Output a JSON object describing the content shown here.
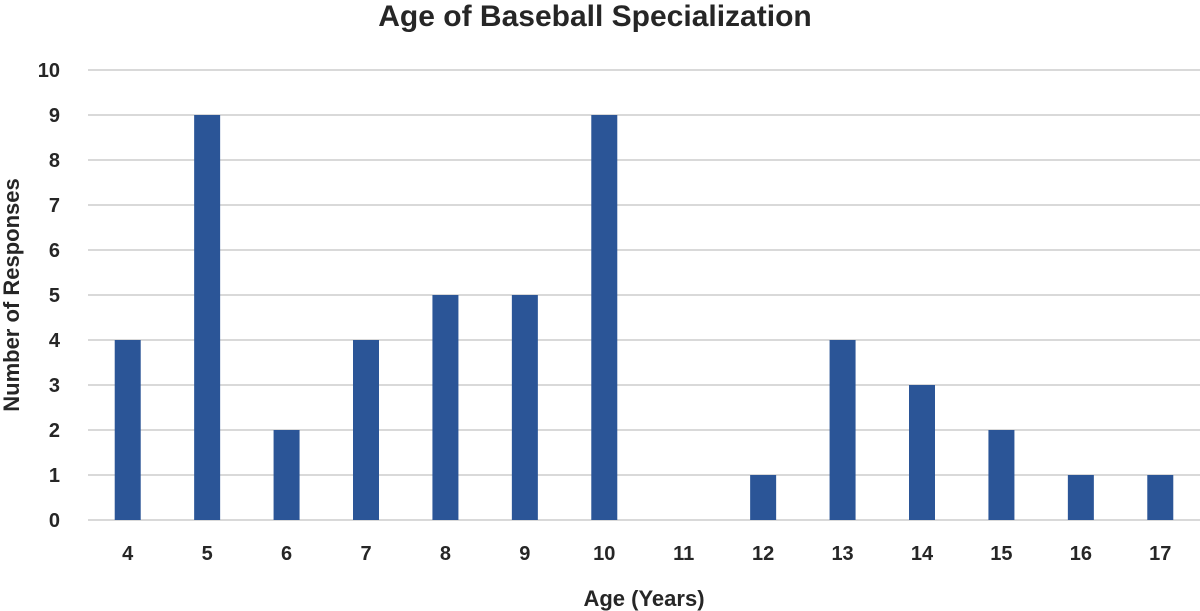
{
  "chart_data": {
    "type": "bar",
    "title": "Age of Baseball Specialization",
    "xlabel": "Age (Years)",
    "ylabel": "Number of Responses",
    "categories": [
      "4",
      "5",
      "6",
      "7",
      "8",
      "9",
      "10",
      "11",
      "12",
      "13",
      "14",
      "15",
      "16",
      "17"
    ],
    "values": [
      4,
      9,
      2,
      4,
      5,
      5,
      9,
      0,
      1,
      4,
      3,
      2,
      1,
      1
    ],
    "ylim": [
      0,
      10
    ],
    "yticks": [
      "0",
      "1",
      "2",
      "3",
      "4",
      "5",
      "6",
      "7",
      "8",
      "9",
      "10"
    ],
    "grid": true,
    "legend": "none",
    "bar_color": "#2b5597"
  }
}
